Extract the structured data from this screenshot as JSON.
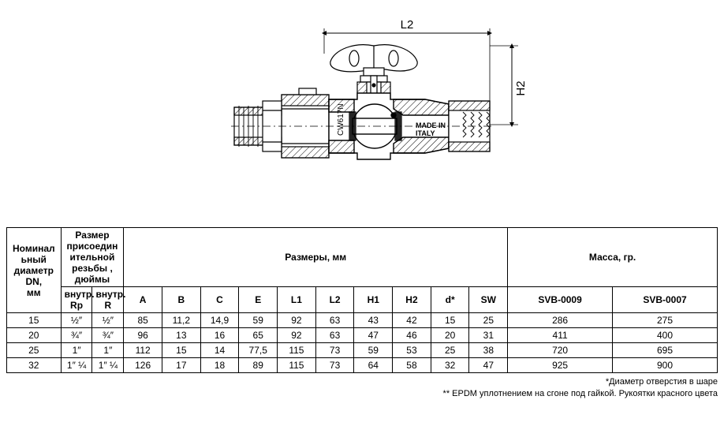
{
  "diagram": {
    "dim_label_L2": "L2",
    "dim_label_H2": "H2",
    "text_inside_1": "MADE IN",
    "text_inside_2": "ITALY",
    "text_inside_3": "CW617N",
    "stroke": "#000000",
    "fill_hatch": "#000000",
    "bg": "#ffffff"
  },
  "table": {
    "header": {
      "dn": "Номинал\nьный\nдиаметр\nDN,\nмм",
      "thread": "Размер\nприсоедин\nительной\nрезьбы ,\nдюймы",
      "thread_sub_in": "внутр.\nRp",
      "thread_sub_out": "внутр.\nR",
      "dims": "Размеры, мм",
      "mass": "Масса, гр.",
      "cols": [
        "A",
        "B",
        "C",
        "E",
        "L1",
        "L2",
        "H1",
        "H2",
        "d*",
        "SW"
      ],
      "mass_cols": [
        "SVB-0009",
        "SVB-0007"
      ]
    },
    "rows": [
      {
        "dn": "15",
        "t1": "½″",
        "t2": "½″",
        "A": "85",
        "B": "11,2",
        "C": "14,9",
        "E": "59",
        "L1": "92",
        "L2": "63",
        "H1": "43",
        "H2": "42",
        "d": "15",
        "SW": "25",
        "m1": "286",
        "m2": "275"
      },
      {
        "dn": "20",
        "t1": "¾″",
        "t2": "¾″",
        "A": "96",
        "B": "13",
        "C": "16",
        "E": "65",
        "L1": "92",
        "L2": "63",
        "H1": "47",
        "H2": "46",
        "d": "20",
        "SW": "31",
        "m1": "411",
        "m2": "400"
      },
      {
        "dn": "25",
        "t1": "1″",
        "t2": "1″",
        "A": "112",
        "B": "15",
        "C": "14",
        "E": "77,5",
        "L1": "115",
        "L2": "73",
        "H1": "59",
        "H2": "53",
        "d": "25",
        "SW": "38",
        "m1": "720",
        "m2": "695"
      },
      {
        "dn": "32",
        "t1": "1″ ¼",
        "t2": "1″ ¼",
        "A": "126",
        "B": "17",
        "C": "18",
        "E": "89",
        "L1": "115",
        "L2": "73",
        "H1": "64",
        "H2": "58",
        "d": "32",
        "SW": "47",
        "m1": "925",
        "m2": "900"
      }
    ]
  },
  "footnotes": {
    "f1": "*Диаметр отверстия в шаре",
    "f2": "**  EPDM уплотнением на сгоне  под гайкой. Рукоятки красного цвета"
  }
}
